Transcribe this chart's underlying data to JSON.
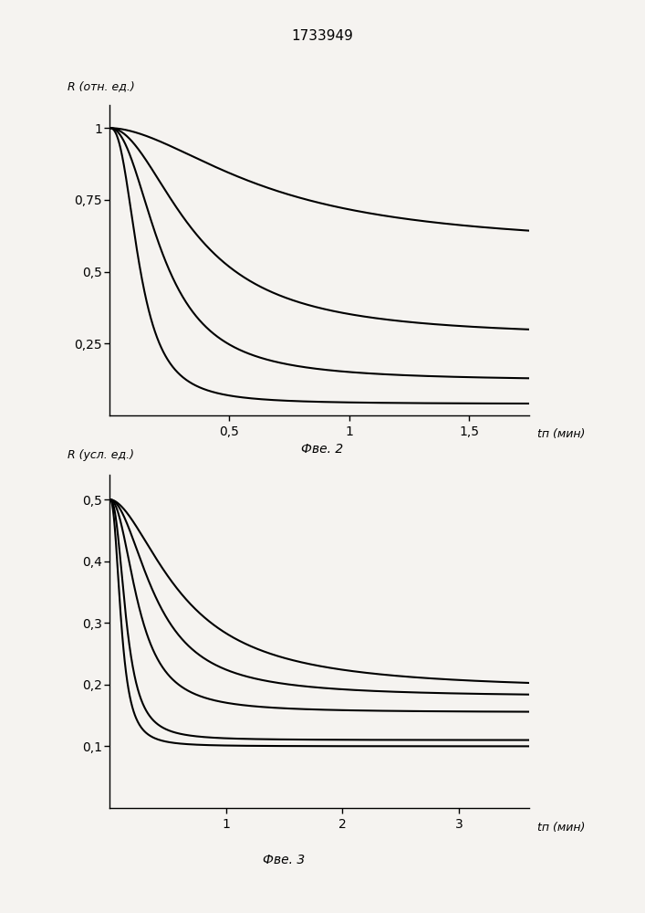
{
  "title": "1733949",
  "fig2_label": "Фве. 2",
  "fig3_label": "Фве. 3",
  "chart1": {
    "ylabel": "R (отн. ед.)",
    "xlabel": "tп (мин)",
    "ytick_labels": [
      "0,25",
      "0,5",
      "0,75",
      "1"
    ],
    "ytick_vals": [
      0.25,
      0.5,
      0.75,
      1.0
    ],
    "xtick_labels": [
      "0,5",
      "1",
      "1,5"
    ],
    "xtick_vals": [
      0.5,
      1.0,
      1.5
    ],
    "xlim": [
      0,
      1.75
    ],
    "ylim": [
      0,
      1.08
    ],
    "curves": [
      {
        "k": 8.0,
        "n": 2.5,
        "y0": 1.0,
        "yinf": 0.04
      },
      {
        "k": 4.5,
        "n": 2.2,
        "y0": 1.0,
        "yinf": 0.12
      },
      {
        "k": 2.8,
        "n": 2.0,
        "y0": 1.0,
        "yinf": 0.27
      },
      {
        "k": 1.5,
        "n": 1.8,
        "y0": 1.0,
        "yinf": 0.58
      }
    ]
  },
  "chart2": {
    "ylabel": "R (усл. ед.)",
    "xlabel": "tп (мин)",
    "ytick_labels": [
      "0,1",
      "0,2",
      "0,3",
      "0,4",
      "0,5"
    ],
    "ytick_vals": [
      0.1,
      0.2,
      0.3,
      0.4,
      0.5
    ],
    "xtick_labels": [
      "1",
      "2",
      "3"
    ],
    "xtick_vals": [
      1,
      2,
      3
    ],
    "xlim": [
      0,
      3.6
    ],
    "ylim": [
      0,
      0.54
    ],
    "curves": [
      {
        "k": 10.0,
        "n": 2.5,
        "y0": 0.5,
        "yinf": 0.1
      },
      {
        "k": 7.0,
        "n": 2.5,
        "y0": 0.5,
        "yinf": 0.11
      },
      {
        "k": 4.0,
        "n": 2.2,
        "y0": 0.5,
        "yinf": 0.155
      },
      {
        "k": 2.5,
        "n": 2.0,
        "y0": 0.5,
        "yinf": 0.18
      },
      {
        "k": 1.6,
        "n": 1.8,
        "y0": 0.5,
        "yinf": 0.19
      }
    ]
  },
  "bg_color": "#f5f3f0",
  "line_color": "#000000",
  "fontsize_title": 11,
  "fontsize_axis": 9,
  "fontsize_tick": 9,
  "fontsize_fig": 10
}
